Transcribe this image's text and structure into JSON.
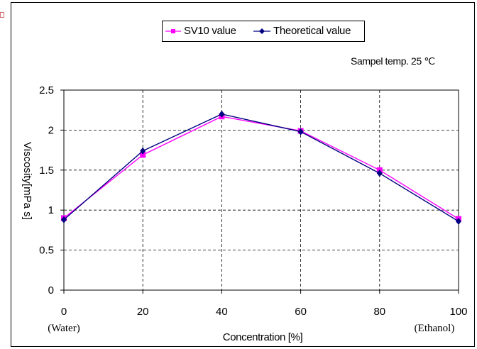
{
  "chart_data": {
    "type": "line",
    "x": [
      0,
      20,
      40,
      60,
      80,
      100
    ],
    "xlabel": "Concentration [%]",
    "ylabel": "Viscosity[mPa s]",
    "ylim": [
      0,
      2.5
    ],
    "xlim": [
      0,
      100
    ],
    "x_tick_labels": [
      "0",
      "20",
      "40",
      "60",
      "80",
      "100"
    ],
    "y_tick_labels": [
      "0",
      "0.5",
      "1",
      "1.5",
      "2",
      "2.5"
    ],
    "x_endpoint_labels": {
      "left": "(Water)",
      "right": "(Ethanol)"
    },
    "annotation": "Sampel temp. 25 ℃",
    "grid": true,
    "legend_position": "top-center",
    "series": [
      {
        "name": "SV10 value",
        "color": "#ff00ff",
        "marker": "square",
        "values": [
          0.9,
          1.69,
          2.17,
          1.99,
          1.5,
          0.89
        ]
      },
      {
        "name": "Theoretical value",
        "color": "#000080",
        "marker": "diamond",
        "values": [
          0.88,
          1.74,
          2.2,
          1.98,
          1.46,
          0.86
        ]
      }
    ]
  }
}
